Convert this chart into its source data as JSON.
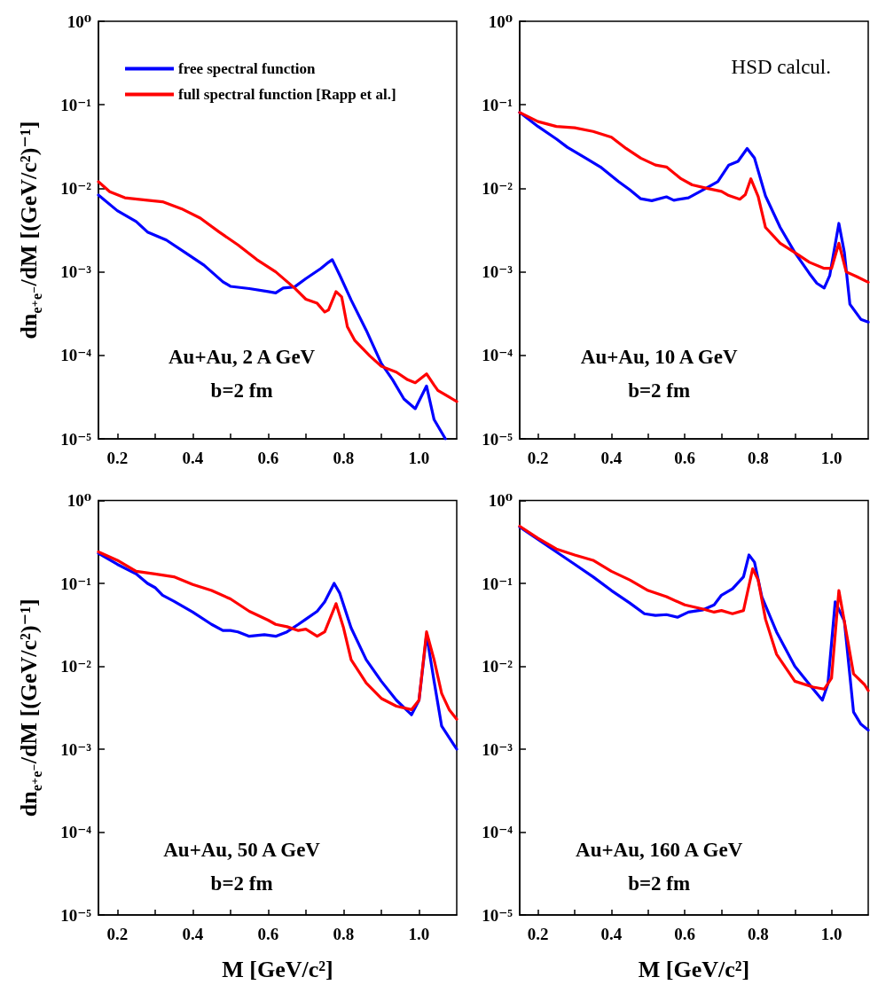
{
  "chart_data": [
    {
      "type": "line",
      "ylabel": "dn$_{e⁺e⁻}$/dM [(GeV/c²)⁻¹]",
      "log": "y",
      "marker": "none",
      "line_style": "solid",
      "legend": "top left",
      "annotations": [
        "Au+Au, 2 A GeV",
        "b=2 fm"
      ],
      "xlim": [
        0.15,
        1.1
      ],
      "xticks": [
        0.2,
        {
          "value": 0.3,
          "label": null
        },
        0.4,
        {
          "value": 0.5,
          "label": null
        },
        0.6,
        {
          "value": 0.7,
          "label": null
        },
        0.8,
        {
          "value": 0.9,
          "label": null
        },
        {
          "value": 1.0,
          "label": "1.0"
        }
      ],
      "ylim": [
        1e-05,
        1
      ],
      "yticks": [
        {
          "value": 1e-05,
          "label": "10⁻⁵"
        },
        {
          "value": 0.0001,
          "label": "10⁻⁴"
        },
        {
          "value": 0.001,
          "label": "10⁻³"
        },
        {
          "value": 0.01,
          "label": "10⁻²"
        },
        {
          "value": 0.1,
          "label": "10⁻¹"
        },
        {
          "value": 1,
          "label": "10⁰"
        }
      ],
      "series": [
        {
          "name": "free spectral function",
          "color": "#0000ff",
          "x": [
            0.15,
            0.2,
            0.25,
            0.28,
            0.33,
            0.38,
            0.43,
            0.48,
            0.5,
            0.55,
            0.6,
            0.62,
            0.64,
            0.67,
            0.7,
            0.74,
            0.76,
            0.77,
            0.79,
            0.82,
            0.86,
            0.9,
            0.93,
            0.96,
            0.99,
            1.02,
            1.04,
            1.07
          ],
          "values": [
            0.0083,
            0.0054,
            0.004,
            0.003,
            0.0024,
            0.0017,
            0.0012,
            0.00076,
            0.00067,
            0.00063,
            0.00058,
            0.00056,
            0.00064,
            0.00066,
            0.00083,
            0.0011,
            0.0013,
            0.0014,
            0.00091,
            0.00046,
            0.0002,
            8e-05,
            5.1e-05,
            3e-05,
            2.3e-05,
            4.3e-05,
            1.7e-05,
            1e-05
          ]
        },
        {
          "name": "full spectral function [Rapp et al.]",
          "color": "#ff0000",
          "x": [
            0.15,
            0.18,
            0.22,
            0.28,
            0.32,
            0.37,
            0.42,
            0.47,
            0.52,
            0.57,
            0.62,
            0.67,
            0.7,
            0.73,
            0.75,
            0.76,
            0.78,
            0.795,
            0.81,
            0.83,
            0.87,
            0.9,
            0.94,
            0.97,
            0.99,
            1.02,
            1.04,
            1.05,
            1.1
          ],
          "values": [
            0.012,
            0.0091,
            0.0077,
            0.0072,
            0.0069,
            0.0057,
            0.0044,
            0.003,
            0.0021,
            0.0014,
            0.001,
            0.00064,
            0.00047,
            0.00042,
            0.00033,
            0.00035,
            0.00058,
            0.0005,
            0.00022,
            0.00015,
            9.8e-05,
            7.4e-05,
            6.3e-05,
            5.1e-05,
            4.7e-05,
            6e-05,
            4.4e-05,
            3.8e-05,
            2.8e-05
          ]
        }
      ]
    },
    {
      "type": "line",
      "log": "y",
      "marker": "none",
      "line_style": "solid",
      "annotations": [
        "HSD calcul.",
        "Au+Au, 10 A GeV",
        "b=2 fm"
      ],
      "xlim": [
        0.15,
        1.1
      ],
      "xticks": [
        0.2,
        {
          "value": 0.3,
          "label": null
        },
        0.4,
        {
          "value": 0.5,
          "label": null
        },
        0.6,
        {
          "value": 0.7,
          "label": null
        },
        0.8,
        {
          "value": 0.9,
          "label": null
        },
        {
          "value": 1.0,
          "label": "1.0"
        }
      ],
      "ylim": [
        1e-05,
        1
      ],
      "yticks": [
        {
          "value": 1e-05,
          "label": "10⁻⁵"
        },
        {
          "value": 0.0001,
          "label": "10⁻⁴"
        },
        {
          "value": 0.001,
          "label": "10⁻³"
        },
        {
          "value": 0.01,
          "label": "10⁻²"
        },
        {
          "value": 0.1,
          "label": "10⁻¹"
        },
        {
          "value": 1,
          "label": "10⁰"
        }
      ],
      "series": [
        {
          "color": "#0000ff",
          "x": [
            0.15,
            0.2,
            0.25,
            0.28,
            0.33,
            0.37,
            0.42,
            0.45,
            0.48,
            0.51,
            0.55,
            0.57,
            0.61,
            0.65,
            0.69,
            0.72,
            0.745,
            0.77,
            0.79,
            0.82,
            0.86,
            0.9,
            0.94,
            0.96,
            0.98,
            0.995,
            1.02,
            1.035,
            1.05,
            1.08,
            1.1
          ],
          "values": [
            0.081,
            0.055,
            0.039,
            0.031,
            0.023,
            0.018,
            0.012,
            0.0096,
            0.0075,
            0.0071,
            0.0079,
            0.0072,
            0.0077,
            0.0096,
            0.012,
            0.019,
            0.021,
            0.03,
            0.023,
            0.0081,
            0.0034,
            0.0017,
            0.00095,
            0.00073,
            0.00064,
            0.0009,
            0.0038,
            0.0017,
            0.00041,
            0.00027,
            0.00025
          ]
        },
        {
          "color": "#ff0000",
          "x": [
            0.15,
            0.2,
            0.25,
            0.3,
            0.35,
            0.4,
            0.44,
            0.48,
            0.52,
            0.55,
            0.59,
            0.62,
            0.66,
            0.7,
            0.72,
            0.75,
            0.765,
            0.78,
            0.8,
            0.82,
            0.86,
            0.9,
            0.94,
            0.98,
            1.0,
            1.02,
            1.04,
            1.07,
            1.1
          ],
          "values": [
            0.081,
            0.063,
            0.055,
            0.053,
            0.048,
            0.041,
            0.03,
            0.023,
            0.019,
            0.018,
            0.013,
            0.011,
            0.01,
            0.0092,
            0.0082,
            0.0074,
            0.0084,
            0.013,
            0.008,
            0.0034,
            0.0022,
            0.0017,
            0.0013,
            0.0011,
            0.0011,
            0.0022,
            0.001,
            0.00087,
            0.00075
          ]
        }
      ]
    },
    {
      "type": "line",
      "xlabel": "M [GeV/c²]",
      "ylabel": "dn$_{e⁺e⁻}$/dM [(GeV/c²)⁻¹]",
      "log": "y",
      "marker": "none",
      "line_style": "solid",
      "annotations": [
        "Au+Au, 50 A GeV",
        "b=2 fm"
      ],
      "xlim": [
        0.15,
        1.1
      ],
      "xticks": [
        0.2,
        {
          "value": 0.3,
          "label": null
        },
        0.4,
        {
          "value": 0.5,
          "label": null
        },
        0.6,
        {
          "value": 0.7,
          "label": null
        },
        0.8,
        {
          "value": 0.9,
          "label": null
        },
        {
          "value": 1.0,
          "label": "1.0"
        }
      ],
      "ylim": [
        1e-05,
        1
      ],
      "yticks": [
        {
          "value": 1e-05,
          "label": "10⁻⁵"
        },
        {
          "value": 0.0001,
          "label": "10⁻⁴"
        },
        {
          "value": 0.001,
          "label": "10⁻³"
        },
        {
          "value": 0.01,
          "label": "10⁻²"
        },
        {
          "value": 0.1,
          "label": "10⁻¹"
        },
        {
          "value": 1,
          "label": "10⁰"
        }
      ],
      "series": [
        {
          "color": "#0000ff",
          "x": [
            0.15,
            0.2,
            0.25,
            0.28,
            0.3,
            0.32,
            0.35,
            0.4,
            0.45,
            0.48,
            0.5,
            0.52,
            0.55,
            0.59,
            0.62,
            0.65,
            0.68,
            0.7,
            0.73,
            0.75,
            0.775,
            0.79,
            0.82,
            0.86,
            0.9,
            0.94,
            0.98,
            1.0,
            1.02,
            1.04,
            1.06,
            1.1
          ],
          "values": [
            0.23,
            0.17,
            0.13,
            0.1,
            0.089,
            0.072,
            0.061,
            0.045,
            0.032,
            0.027,
            0.027,
            0.026,
            0.023,
            0.024,
            0.023,
            0.026,
            0.032,
            0.037,
            0.046,
            0.06,
            0.1,
            0.076,
            0.029,
            0.012,
            0.0066,
            0.0039,
            0.0026,
            0.0039,
            0.024,
            0.0066,
            0.0019,
            0.001
          ]
        },
        {
          "color": "#ff0000",
          "x": [
            0.15,
            0.2,
            0.25,
            0.3,
            0.35,
            0.4,
            0.45,
            0.5,
            0.55,
            0.6,
            0.62,
            0.65,
            0.68,
            0.7,
            0.73,
            0.75,
            0.78,
            0.8,
            0.82,
            0.86,
            0.9,
            0.94,
            0.98,
            1.0,
            1.02,
            1.04,
            1.06,
            1.08,
            1.1
          ],
          "values": [
            0.24,
            0.19,
            0.14,
            0.13,
            0.12,
            0.097,
            0.082,
            0.065,
            0.046,
            0.036,
            0.032,
            0.03,
            0.027,
            0.028,
            0.023,
            0.026,
            0.057,
            0.029,
            0.012,
            0.0063,
            0.0041,
            0.0033,
            0.003,
            0.0039,
            0.026,
            0.012,
            0.0047,
            0.003,
            0.0023
          ]
        }
      ]
    },
    {
      "type": "line",
      "xlabel": "M [GeV/c²]",
      "log": "y",
      "marker": "none",
      "line_style": "solid",
      "annotations": [
        "Au+Au, 160 A GeV",
        "b=2 fm"
      ],
      "xlim": [
        0.15,
        1.1
      ],
      "xticks": [
        0.2,
        {
          "value": 0.3,
          "label": null
        },
        0.4,
        {
          "value": 0.5,
          "label": null
        },
        0.6,
        {
          "value": 0.7,
          "label": null
        },
        0.8,
        {
          "value": 0.9,
          "label": null
        },
        {
          "value": 1.0,
          "label": "1.0"
        }
      ],
      "ylim": [
        1e-05,
        1
      ],
      "yticks": [
        {
          "value": 1e-05,
          "label": "10⁻⁵"
        },
        {
          "value": 0.0001,
          "label": "10⁻⁴"
        },
        {
          "value": 0.001,
          "label": "10⁻³"
        },
        {
          "value": 0.01,
          "label": "10⁻²"
        },
        {
          "value": 0.1,
          "label": "10⁻¹"
        },
        {
          "value": 1,
          "label": "10⁰"
        }
      ],
      "series": [
        {
          "color": "#0000ff",
          "x": [
            0.15,
            0.2,
            0.25,
            0.3,
            0.35,
            0.4,
            0.45,
            0.49,
            0.52,
            0.55,
            0.58,
            0.61,
            0.65,
            0.68,
            0.7,
            0.73,
            0.76,
            0.775,
            0.79,
            0.81,
            0.85,
            0.9,
            0.95,
            0.975,
            0.99,
            1.01,
            1.035,
            1.06,
            1.08,
            1.1
          ],
          "values": [
            0.48,
            0.34,
            0.24,
            0.17,
            0.12,
            0.082,
            0.058,
            0.043,
            0.041,
            0.042,
            0.039,
            0.045,
            0.048,
            0.055,
            0.072,
            0.086,
            0.12,
            0.22,
            0.18,
            0.069,
            0.026,
            0.01,
            0.0053,
            0.0039,
            0.0061,
            0.06,
            0.035,
            0.0028,
            0.002,
            0.0017
          ]
        },
        {
          "color": "#ff0000",
          "x": [
            0.15,
            0.2,
            0.25,
            0.3,
            0.35,
            0.4,
            0.45,
            0.5,
            0.55,
            0.6,
            0.65,
            0.68,
            0.7,
            0.73,
            0.76,
            0.785,
            0.8,
            0.82,
            0.85,
            0.9,
            0.95,
            0.98,
            1.0,
            1.02,
            1.04,
            1.06,
            1.09,
            1.1
          ],
          "values": [
            0.49,
            0.35,
            0.26,
            0.22,
            0.19,
            0.14,
            0.11,
            0.082,
            0.069,
            0.055,
            0.049,
            0.045,
            0.047,
            0.043,
            0.047,
            0.15,
            0.11,
            0.037,
            0.014,
            0.0066,
            0.0056,
            0.0053,
            0.0072,
            0.082,
            0.026,
            0.0081,
            0.006,
            0.0051
          ]
        }
      ]
    }
  ]
}
